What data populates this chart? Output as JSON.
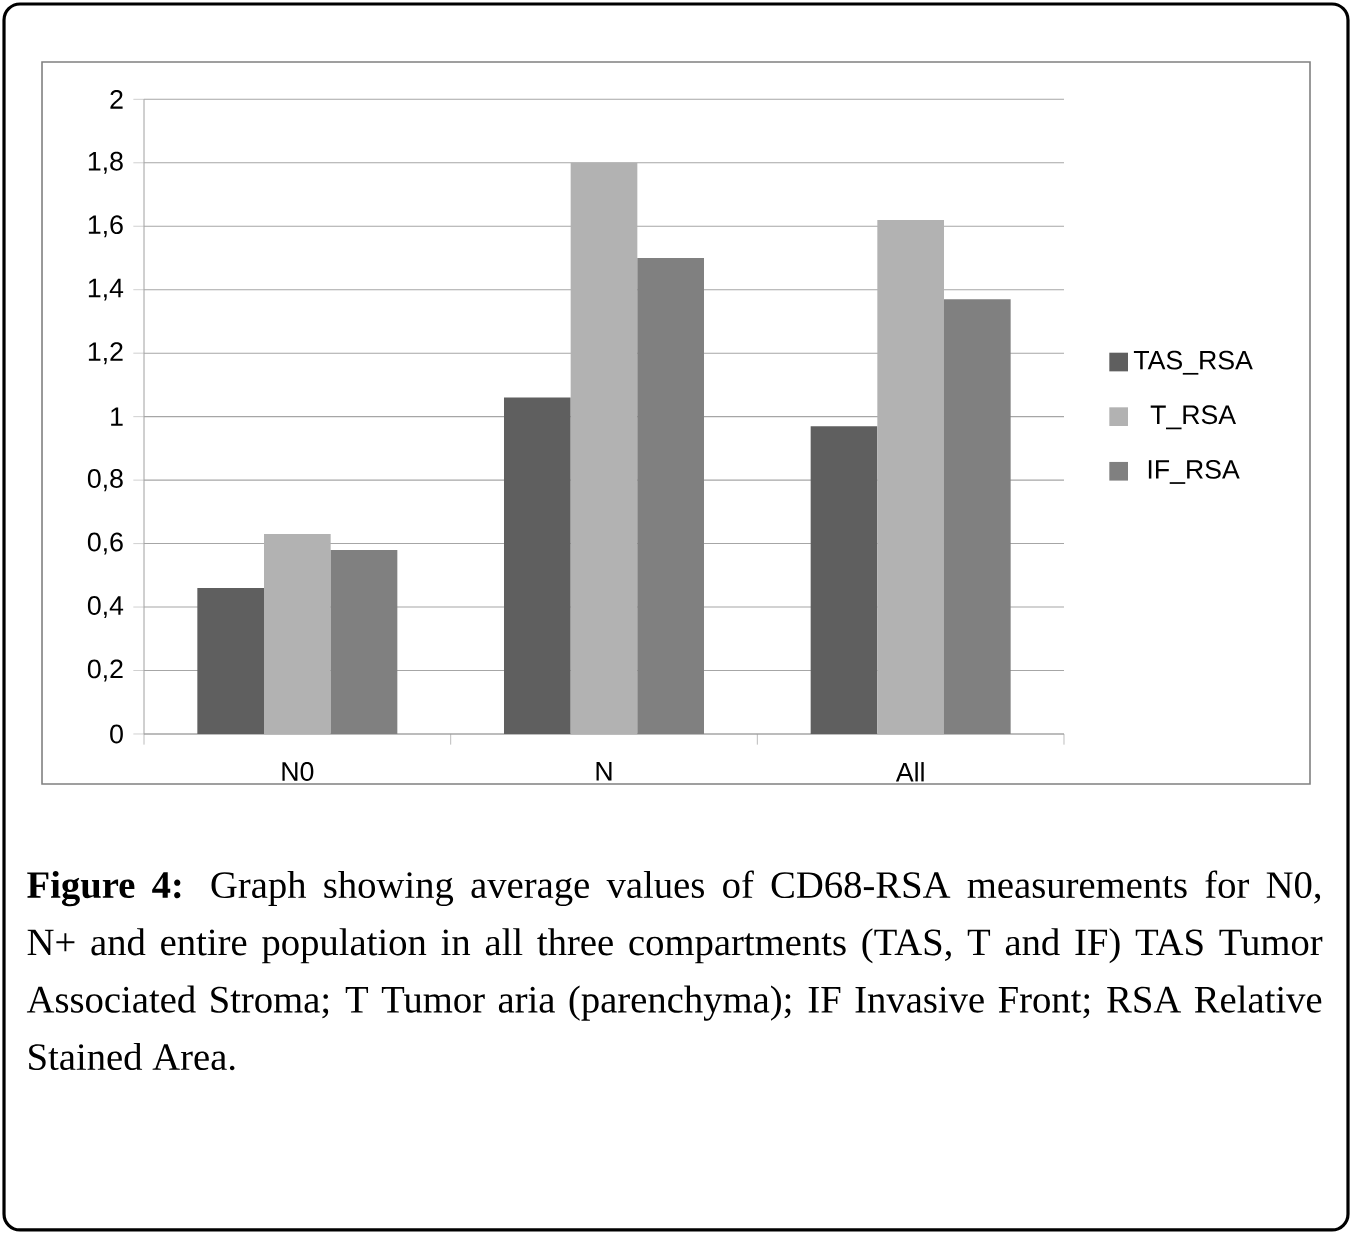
{
  "chart_data": {
    "type": "bar",
    "categories": [
      "N0",
      "N",
      "All"
    ],
    "series": [
      {
        "name": "TAS_RSA",
        "color": "#5f5f5f",
        "values": [
          0.46,
          1.06,
          0.97
        ]
      },
      {
        "name": "T_RSA",
        "color": "#b2b2b2",
        "values": [
          0.63,
          1.8,
          1.62
        ]
      },
      {
        "name": "IF_RSA",
        "color": "#808080",
        "values": [
          0.58,
          1.5,
          1.37
        ]
      }
    ],
    "ylim": [
      0,
      2
    ],
    "yticks": [
      0,
      {
        "value": 0.2,
        "label": "0,2"
      },
      {
        "value": 0.4,
        "label": "0,4"
      },
      {
        "value": 0.6,
        "label": "0,6"
      },
      {
        "value": 0.8,
        "label": "0,8"
      },
      1,
      {
        "value": 1.2,
        "label": "1,2"
      },
      {
        "value": 1.4,
        "label": "1,4"
      },
      {
        "value": 1.6,
        "label": "1,6"
      },
      {
        "value": 1.8,
        "label": "1,8"
      },
      2
    ],
    "grid": "y",
    "legend": "right",
    "annotations": [
      "**Figure 4:** Graph showing average values of CD68-RSA measurements for N0, N+ and entire population in all three compartments (TAS, T and IF) TAS Tumor Associated Stroma; T Tumor aria (parenchyma); IF Invasive Front; RSA Relative Stained Area."
    ]
  }
}
